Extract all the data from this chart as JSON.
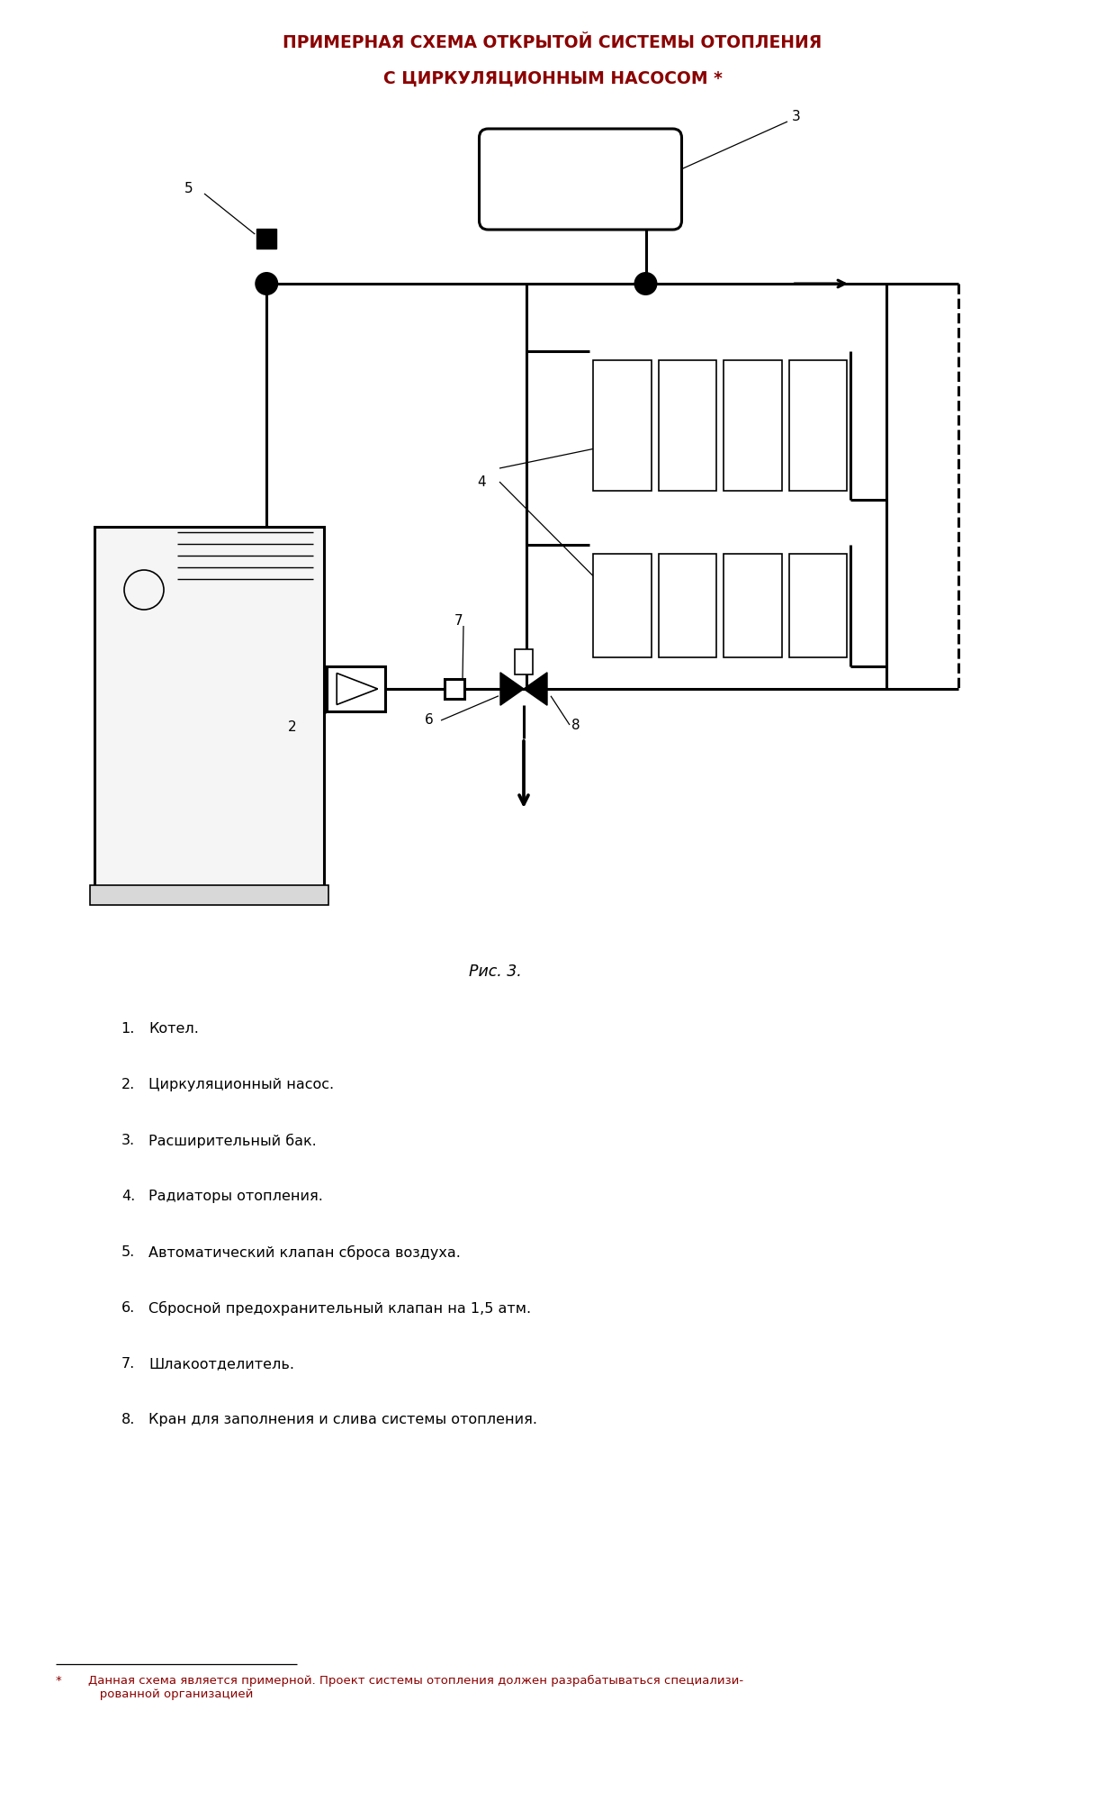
{
  "title_line1": "ПРИМЕРНАЯ СХЕМА ОТКРЫТОЙ СИСТЕМЫ ОТОПЛЕНИЯ",
  "title_line2": "С ЦИРКУЛЯЦИОННЫМ НАСОСОМ *",
  "title_color": "#8B0000",
  "fig_caption": "Рис. 3.",
  "legend_items": [
    [
      "1.",
      "Котел."
    ],
    [
      "2.",
      "Циркуляционный насос."
    ],
    [
      "3.",
      "Расширительный бак."
    ],
    [
      "4.",
      "Радиаторы отопления."
    ],
    [
      "5.",
      "Автоматический клапан сброса воздуха."
    ],
    [
      "6.",
      "Сбросной предохранительный клапан на 1,5 атм."
    ],
    [
      "7.",
      "Шлакоотделитель."
    ],
    [
      "8.",
      "Кран для заполнения и слива системы отопления."
    ]
  ],
  "footnote_star": "*",
  "footnote_text": "Данная схема является примерной. Проект системы отопления должен разрабатываться специализи-\n   рованной организацией",
  "bg_color": "#ffffff",
  "lw": 2.2,
  "lw_thin": 1.2
}
